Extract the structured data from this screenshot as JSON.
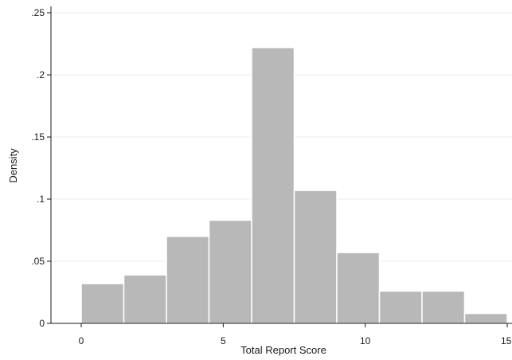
{
  "chart_data": {
    "type": "bar",
    "subtype": "histogram",
    "xlabel": "Total Report Score",
    "ylabel": "Density",
    "xlim": [
      0,
      15
    ],
    "ylim": [
      0,
      0.25
    ],
    "x_ticks": [
      {
        "value": 0,
        "label": "0"
      },
      {
        "value": 5,
        "label": "5"
      },
      {
        "value": 10,
        "label": "10"
      },
      {
        "value": 15,
        "label": "15"
      }
    ],
    "y_ticks": [
      {
        "value": 0,
        "label": "0"
      },
      {
        "value": 0.05,
        "label": ".05"
      },
      {
        "value": 0.1,
        "label": ".1"
      },
      {
        "value": 0.15,
        "label": ".15"
      },
      {
        "value": 0.2,
        "label": ".2"
      },
      {
        "value": 0.25,
        "label": ".25"
      }
    ],
    "bins": [
      {
        "x0": 0.0,
        "x1": 1.5,
        "value": 0.032
      },
      {
        "x0": 1.5,
        "x1": 3.0,
        "value": 0.039
      },
      {
        "x0": 3.0,
        "x1": 4.5,
        "value": 0.07
      },
      {
        "x0": 4.5,
        "x1": 6.0,
        "value": 0.083
      },
      {
        "x0": 6.0,
        "x1": 7.5,
        "value": 0.222
      },
      {
        "x0": 7.5,
        "x1": 9.0,
        "value": 0.107
      },
      {
        "x0": 9.0,
        "x1": 10.5,
        "value": 0.057
      },
      {
        "x0": 10.5,
        "x1": 12.0,
        "value": 0.026
      },
      {
        "x0": 12.0,
        "x1": 13.5,
        "value": 0.026
      },
      {
        "x0": 13.5,
        "x1": 15.0,
        "value": 0.008
      }
    ],
    "grid": {
      "horizontal": true,
      "vertical": false
    },
    "colors": {
      "bar_fill": "#b8b8b8",
      "bar_edge": "#ffffff",
      "grid": "#ececec",
      "axis": "#1a1a1a"
    }
  }
}
